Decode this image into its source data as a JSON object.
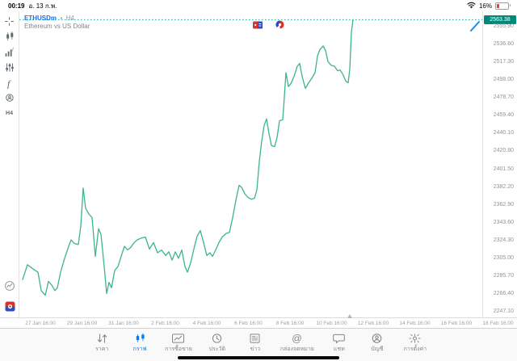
{
  "status_bar": {
    "time": "00:19",
    "date": "อ. 13 ก.พ.",
    "battery_percent": "16%"
  },
  "chart_header": {
    "symbol": "ETHUSDm",
    "bullet": "•",
    "timeframe": "H4",
    "description": "Ethereum vs US Dollar"
  },
  "toolbar": {
    "timeframe": "H4",
    "icons": [
      "crosshair-icon",
      "chart-type-icon",
      "indicators-icon",
      "objects-sliders-icon",
      "function-icon",
      "objects-icon"
    ],
    "bottom_icons": [
      "trading-sessions-icon",
      "broker-logo-icon"
    ]
  },
  "price_axis": {
    "current_price_label": "2563.38",
    "ticks": [
      "2555.90",
      "2536.60",
      "2517.30",
      "2498.00",
      "2478.70",
      "2459.40",
      "2440.10",
      "2420.80",
      "2401.50",
      "2382.20",
      "2362.90",
      "2343.60",
      "2324.30",
      "2305.00",
      "2285.70",
      "2266.40",
      "2247.10"
    ]
  },
  "time_axis": {
    "labels": [
      "27 Jan 16:00",
      "29 Jan 16:00",
      "31 Jan 16:00",
      "2 Feb 16:00",
      "4 Feb 16:00",
      "6 Feb 16:00",
      "8 Feb 16:00",
      "10 Feb 16:00",
      "12 Feb 16:00",
      "14 Feb 16:00",
      "16 Feb 16:00",
      "18 Feb 16:00"
    ]
  },
  "nav": {
    "items": [
      {
        "label": "ราคา",
        "icon": "quotes-icon",
        "active": false
      },
      {
        "label": "กราฟ",
        "icon": "chart-icon",
        "active": true
      },
      {
        "label": "การซื้อขาย",
        "icon": "trade-icon",
        "active": false
      },
      {
        "label": "ประวัติ",
        "icon": "history-icon",
        "active": false
      },
      {
        "label": "ข่าว",
        "icon": "news-icon",
        "active": false
      },
      {
        "label": "กล่องจดหมาย",
        "icon": "mailbox-icon",
        "active": false
      },
      {
        "label": "แชท",
        "icon": "chat-icon",
        "active": false
      },
      {
        "label": "บัญชี",
        "icon": "account-icon",
        "active": false
      },
      {
        "label": "การตั้งค่า",
        "icon": "settings-icon",
        "active": false
      }
    ]
  },
  "colors": {
    "line": "#3cb589",
    "current_price_line": "#26a69a",
    "price_badge_bg": "#00897b",
    "symbol_blue": "#1a73e8",
    "nav_active": "#007aff",
    "event_red": "#d9342b",
    "event_blue": "#3d51c4"
  },
  "chart_data": {
    "type": "line",
    "symbol": "ETHUSDm",
    "timeframe": "H4",
    "title": "Ethereum vs US Dollar",
    "current_price": 2563.38,
    "y_ticks": [
      2555.9,
      2536.6,
      2517.3,
      2498.0,
      2478.7,
      2459.4,
      2440.1,
      2420.8,
      2401.5,
      2382.2,
      2362.9,
      2343.6,
      2324.3,
      2305.0,
      2285.7,
      2266.4,
      2247.1
    ],
    "y_tick_step": 19.3,
    "x_tick_labels": [
      "27 Jan 16:00",
      "29 Jan 16:00",
      "31 Jan 16:00",
      "2 Feb 16:00",
      "4 Feb 16:00",
      "6 Feb 16:00",
      "8 Feb 16:00",
      "10 Feb 16:00",
      "12 Feb 16:00",
      "14 Feb 16:00",
      "16 Feb 16:00",
      "18 Feb 16:00"
    ],
    "axis_price_top": 2572.5,
    "axis_price_bottom": 2241.0,
    "grid": false,
    "legend": false,
    "points": [
      [
        4,
        2282
      ],
      [
        10,
        2298
      ],
      [
        16,
        2294
      ],
      [
        23,
        2290
      ],
      [
        27,
        2270
      ],
      [
        32,
        2265
      ],
      [
        36,
        2280
      ],
      [
        40,
        2276
      ],
      [
        44,
        2270
      ],
      [
        47,
        2273
      ],
      [
        51,
        2290
      ],
      [
        56,
        2305
      ],
      [
        61,
        2318
      ],
      [
        64,
        2325
      ],
      [
        68,
        2321
      ],
      [
        73,
        2320
      ],
      [
        76,
        2340
      ],
      [
        79,
        2381
      ],
      [
        82,
        2359
      ],
      [
        86,
        2353
      ],
      [
        90,
        2349
      ],
      [
        94,
        2307
      ],
      [
        98,
        2337
      ],
      [
        101,
        2331
      ],
      [
        105,
        2296
      ],
      [
        108,
        2267
      ],
      [
        111,
        2279
      ],
      [
        114,
        2273
      ],
      [
        118,
        2292
      ],
      [
        122,
        2296
      ],
      [
        126,
        2307
      ],
      [
        130,
        2318
      ],
      [
        134,
        2314
      ],
      [
        138,
        2317
      ],
      [
        142,
        2322
      ],
      [
        146,
        2325
      ],
      [
        151,
        2327
      ],
      [
        156,
        2328
      ],
      [
        161,
        2315
      ],
      [
        166,
        2322
      ],
      [
        171,
        2311
      ],
      [
        176,
        2314
      ],
      [
        181,
        2308
      ],
      [
        185,
        2312
      ],
      [
        189,
        2303
      ],
      [
        193,
        2312
      ],
      [
        197,
        2305
      ],
      [
        201,
        2314
      ],
      [
        205,
        2296
      ],
      [
        208,
        2290
      ],
      [
        212,
        2300
      ],
      [
        216,
        2315
      ],
      [
        220,
        2329
      ],
      [
        224,
        2335
      ],
      [
        228,
        2322
      ],
      [
        232,
        2308
      ],
      [
        236,
        2311
      ],
      [
        239,
        2307
      ],
      [
        243,
        2314
      ],
      [
        247,
        2322
      ],
      [
        251,
        2328
      ],
      [
        256,
        2332
      ],
      [
        260,
        2333
      ],
      [
        264,
        2349
      ],
      [
        268,
        2368
      ],
      [
        272,
        2384
      ],
      [
        275,
        2382
      ],
      [
        279,
        2375
      ],
      [
        283,
        2371
      ],
      [
        287,
        2369
      ],
      [
        291,
        2370
      ],
      [
        294,
        2379
      ],
      [
        297,
        2410
      ],
      [
        300,
        2432
      ],
      [
        303,
        2449
      ],
      [
        306,
        2456
      ],
      [
        309,
        2440
      ],
      [
        312,
        2427
      ],
      [
        316,
        2426
      ],
      [
        319,
        2436
      ],
      [
        322,
        2454
      ],
      [
        326,
        2455
      ],
      [
        328,
        2480
      ],
      [
        330,
        2506
      ],
      [
        333,
        2491
      ],
      [
        336,
        2494
      ],
      [
        340,
        2502
      ],
      [
        344,
        2513
      ],
      [
        347,
        2516
      ],
      [
        350,
        2502
      ],
      [
        354,
        2489
      ],
      [
        358,
        2495
      ],
      [
        362,
        2500
      ],
      [
        366,
        2506
      ],
      [
        369,
        2524
      ],
      [
        372,
        2531
      ],
      [
        376,
        2535
      ],
      [
        379,
        2530
      ],
      [
        382,
        2518
      ],
      [
        386,
        2514
      ],
      [
        390,
        2513
      ],
      [
        394,
        2508
      ],
      [
        397,
        2509
      ],
      [
        400,
        2505
      ],
      [
        404,
        2497
      ],
      [
        407,
        2495
      ],
      [
        409,
        2510
      ],
      [
        411,
        2550
      ],
      [
        413,
        2563.4
      ]
    ]
  }
}
